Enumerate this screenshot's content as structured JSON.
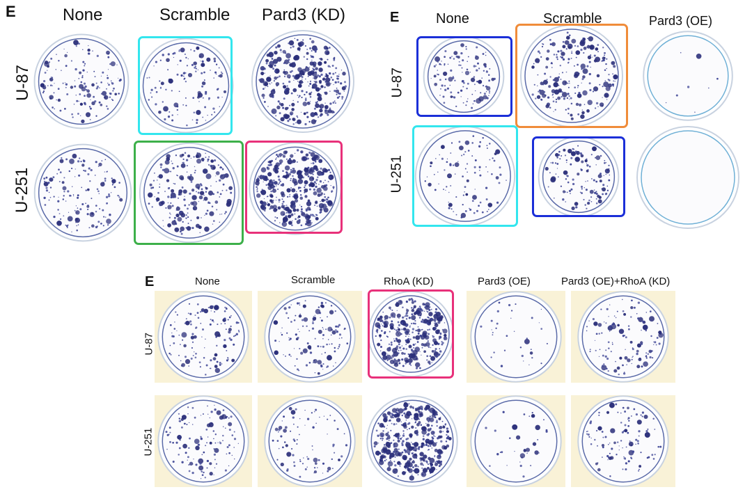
{
  "colors": {
    "stain": "#3f4696",
    "stain_dark": "#2b2f7a",
    "plastic": "#c8d2e0",
    "plastic_blue": "#6fb0d6",
    "yellow_tint": "#f1e2a6",
    "highlight_cyan": "#33e6ee",
    "highlight_green": "#3db04a",
    "highlight_magenta": "#e8317a",
    "highlight_blue": "#1b2fd8",
    "highlight_orange": "#f08c3a"
  },
  "panels": [
    {
      "letter": "E",
      "columns": [
        "None",
        "Scramble",
        "Pard3 (KD)"
      ],
      "rows": [
        "U-87",
        "U-251"
      ],
      "highlights": [
        {
          "row": 0,
          "col": 1,
          "color": "highlight_cyan"
        },
        {
          "row": 1,
          "col": 1,
          "color": "highlight_green"
        },
        {
          "row": 1,
          "col": 2,
          "color": "highlight_magenta"
        }
      ],
      "density": [
        [
          0.35,
          0.3,
          0.85
        ],
        [
          0.35,
          0.55,
          0.95
        ]
      ]
    },
    {
      "letter": "E",
      "columns": [
        "None",
        "Scramble",
        "Pard3 (OE)"
      ],
      "rows": [
        "U-87",
        "U-251"
      ],
      "highlights": [
        {
          "row": 0,
          "col": 0,
          "color": "highlight_blue"
        },
        {
          "row": 0,
          "col": 1,
          "color": "highlight_orange"
        },
        {
          "row": 1,
          "col": 0,
          "color": "highlight_cyan"
        },
        {
          "row": 1,
          "col": 1,
          "color": "highlight_blue"
        }
      ],
      "density": [
        [
          0.3,
          0.55,
          0.02
        ],
        [
          0.25,
          0.3,
          0.0
        ]
      ]
    },
    {
      "letter": "E",
      "columns": [
        "None",
        "Scramble",
        "RhoA (KD)",
        "Pard3 (OE)",
        "Pard3 (OE)+RhoA (KD)"
      ],
      "rows": [
        "U-87",
        "U-251"
      ],
      "highlights": [
        {
          "row": 0,
          "col": 2,
          "color": "highlight_magenta"
        }
      ],
      "density": [
        [
          0.3,
          0.3,
          0.8,
          0.08,
          0.3
        ],
        [
          0.3,
          0.2,
          0.95,
          0.08,
          0.25
        ]
      ]
    }
  ]
}
